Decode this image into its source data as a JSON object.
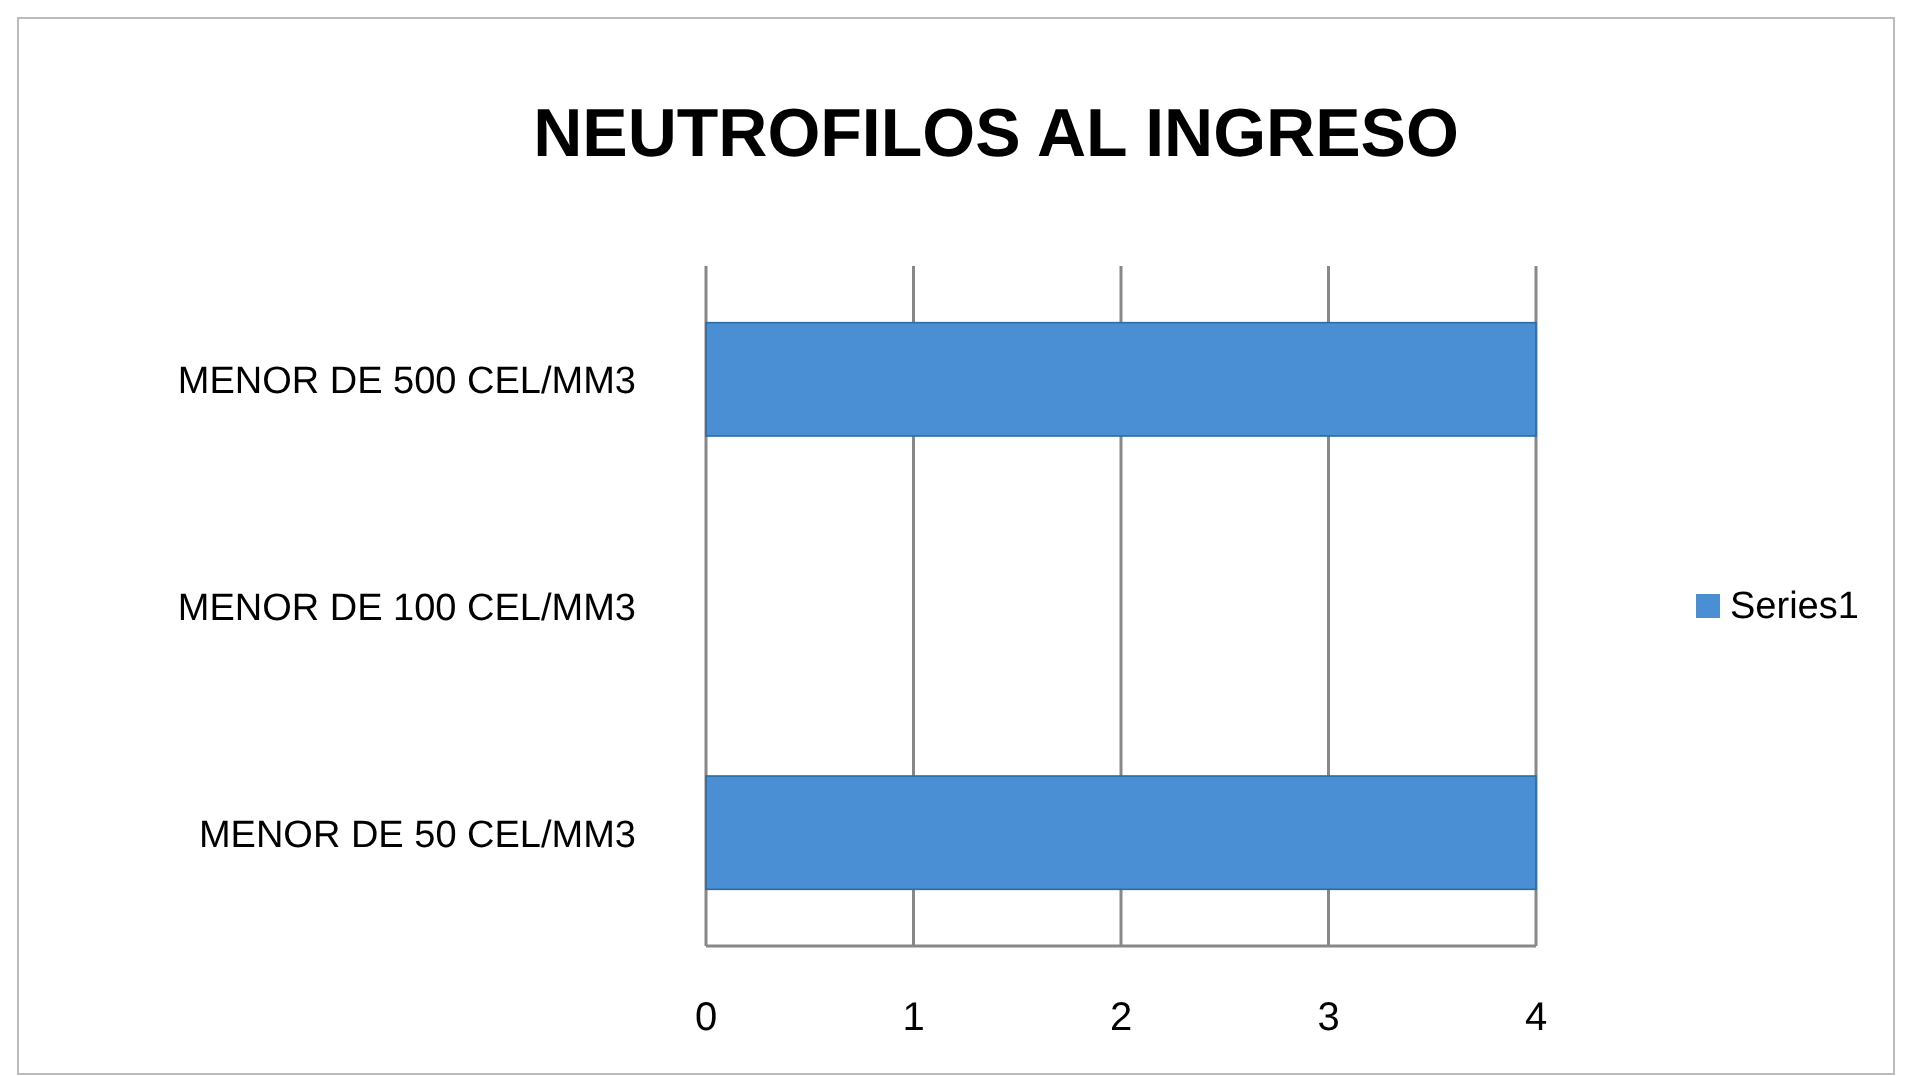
{
  "chart_data": {
    "type": "bar",
    "orientation": "horizontal",
    "title": "NEUTROFILOS AL INGRESO",
    "categories": [
      "MENOR DE 500 CEL/MM3",
      "MENOR DE 100 CEL/MM3",
      "MENOR DE 50 CEL/MM3"
    ],
    "series": [
      {
        "name": "Series1",
        "color": "#4a8fd4",
        "values": [
          4,
          0,
          4
        ]
      }
    ],
    "xlim": [
      0,
      4
    ],
    "xticks": [
      0,
      1,
      2,
      3,
      4
    ],
    "grid": "x",
    "legend": "right"
  }
}
